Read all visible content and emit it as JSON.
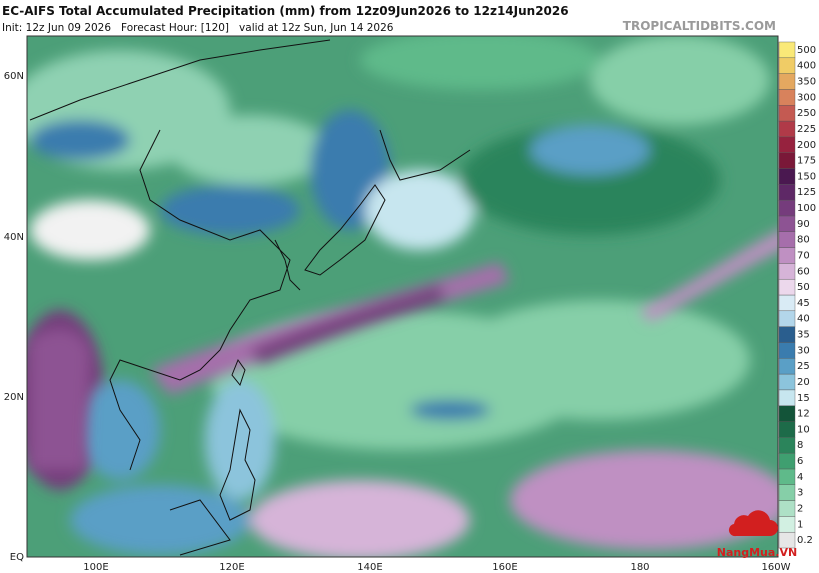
{
  "header": {
    "title": "EC-AIFS Total Accumulated Precipitation (mm) from 12z09Jun2026 to 12z14Jun2026",
    "subtitle": "Init: 12z Jun 09 2026   Forecast Hour: [120]   valid at 12z Sun, Jun 14 2026",
    "site": "TROPICALTIDBITS.COM"
  },
  "map": {
    "lat_labels": [
      "60N",
      "40N",
      "20N",
      "EQ"
    ],
    "lon_labels": [
      "100E",
      "120E",
      "140E",
      "160E",
      "180",
      "160W"
    ]
  },
  "colorbar": {
    "levels": [
      0.2,
      1,
      2,
      3,
      4,
      6,
      8,
      10,
      12,
      15,
      20,
      25,
      30,
      35,
      40,
      45,
      50,
      60,
      70,
      80,
      90,
      100,
      125,
      150,
      175,
      200,
      225,
      250,
      300,
      350,
      400,
      500
    ],
    "colors": [
      "#e6e6e6",
      "#d2f0e2",
      "#aee0c6",
      "#86cfa8",
      "#5fba8a",
      "#3f9f70",
      "#2b845b",
      "#1d6b49",
      "#135439",
      "#c7e6ef",
      "#8cc4dc",
      "#5a9fc6",
      "#3a7cae",
      "#2a5e8e",
      "#b3d6ea",
      "#d9ebf5",
      "#ecd8ec",
      "#d6b4d8",
      "#bf90c2",
      "#a66eab",
      "#8d5393",
      "#753c7c",
      "#5e2866",
      "#4a1850",
      "#7a1838",
      "#96223e",
      "#b03a48",
      "#c45a52",
      "#d8825c",
      "#e4a860",
      "#f0cc66",
      "#fae978"
    ]
  },
  "watermark": "NangMua.VN"
}
